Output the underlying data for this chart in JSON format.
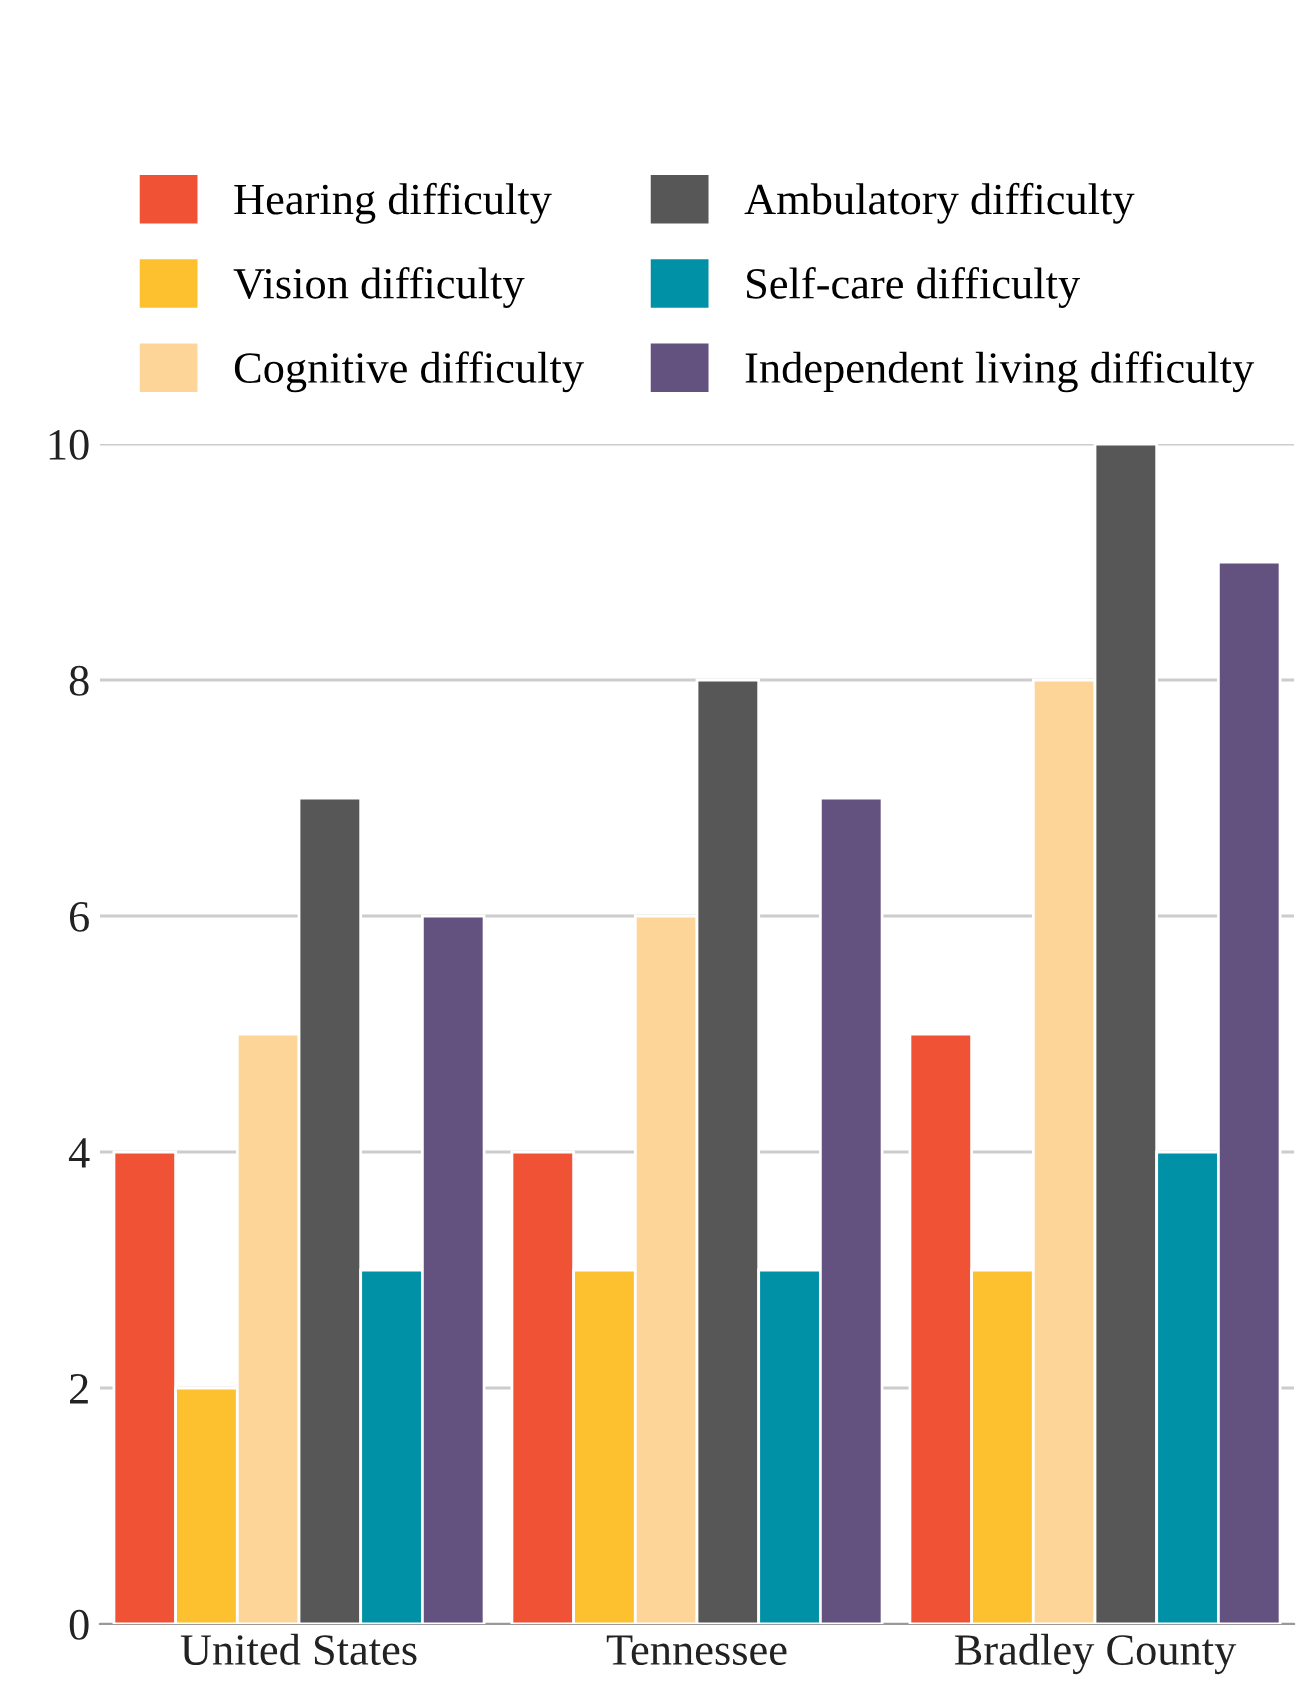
{
  "chart_data": {
    "type": "bar",
    "categories": [
      "United States",
      "Tennessee",
      "Bradley County"
    ],
    "series": [
      {
        "name": "Hearing difficulty",
        "color": "#f05235",
        "values": [
          4,
          4,
          5
        ]
      },
      {
        "name": "Vision difficulty",
        "color": "#fdc02f",
        "values": [
          2,
          3,
          3
        ]
      },
      {
        "name": "Cognitive difficulty",
        "color": "#fdd599",
        "values": [
          5,
          6,
          8
        ]
      },
      {
        "name": "Ambulatory difficulty",
        "color": "#575757",
        "values": [
          7,
          8,
          10
        ]
      },
      {
        "name": "Self-care difficulty",
        "color": "#0091a7",
        "values": [
          3,
          3,
          4
        ]
      },
      {
        "name": "Independent living difficulty",
        "color": "#63517f",
        "values": [
          6,
          7,
          9
        ]
      }
    ],
    "ylim": [
      0,
      10
    ],
    "yticks": [
      0,
      2,
      4,
      6,
      8,
      10
    ],
    "grid": "y",
    "legend": "top"
  }
}
